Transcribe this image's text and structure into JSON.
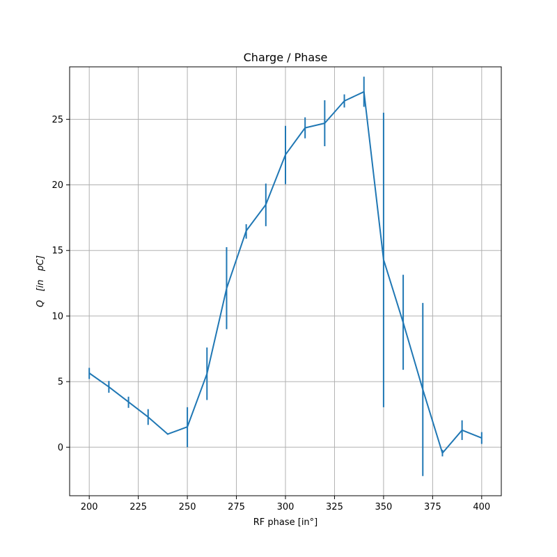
{
  "chart_data": {
    "type": "line",
    "title": "Charge / Phase",
    "xlabel": "RF phase [in°]",
    "ylabel": "Q   [in   pC]",
    "xlim": [
      190,
      410
    ],
    "ylim": [
      -3.7,
      29.0
    ],
    "grid": true,
    "x_ticks": [
      200,
      225,
      250,
      275,
      300,
      325,
      350,
      375,
      400
    ],
    "y_ticks": [
      0,
      5,
      10,
      15,
      20,
      25
    ],
    "series": [
      {
        "color": "#1f77b4",
        "x": [
          200,
          210,
          220,
          230,
          240,
          250,
          260,
          270,
          280,
          290,
          300,
          310,
          320,
          330,
          340,
          350,
          360,
          370,
          380,
          390,
          400
        ],
        "y": [
          5.65,
          4.6,
          3.45,
          2.3,
          1.0,
          1.55,
          5.6,
          12.1,
          16.5,
          18.5,
          22.3,
          24.35,
          24.7,
          26.4,
          27.1,
          14.3,
          9.5,
          4.4,
          -0.45,
          1.3,
          0.7
        ],
        "yerr_low": [
          5.2,
          4.15,
          3.0,
          1.7,
          0.95,
          0.0,
          3.6,
          9.0,
          15.9,
          16.85,
          20.05,
          23.55,
          22.95,
          25.9,
          25.95,
          3.05,
          5.9,
          -2.2,
          -0.7,
          0.55,
          0.25
        ],
        "yerr_high": [
          6.05,
          5.05,
          3.85,
          2.9,
          1.05,
          3.05,
          7.6,
          15.25,
          17.0,
          20.1,
          24.5,
          25.15,
          26.45,
          26.9,
          28.25,
          25.5,
          13.15,
          11.0,
          -0.2,
          2.05,
          1.15
        ]
      }
    ]
  }
}
